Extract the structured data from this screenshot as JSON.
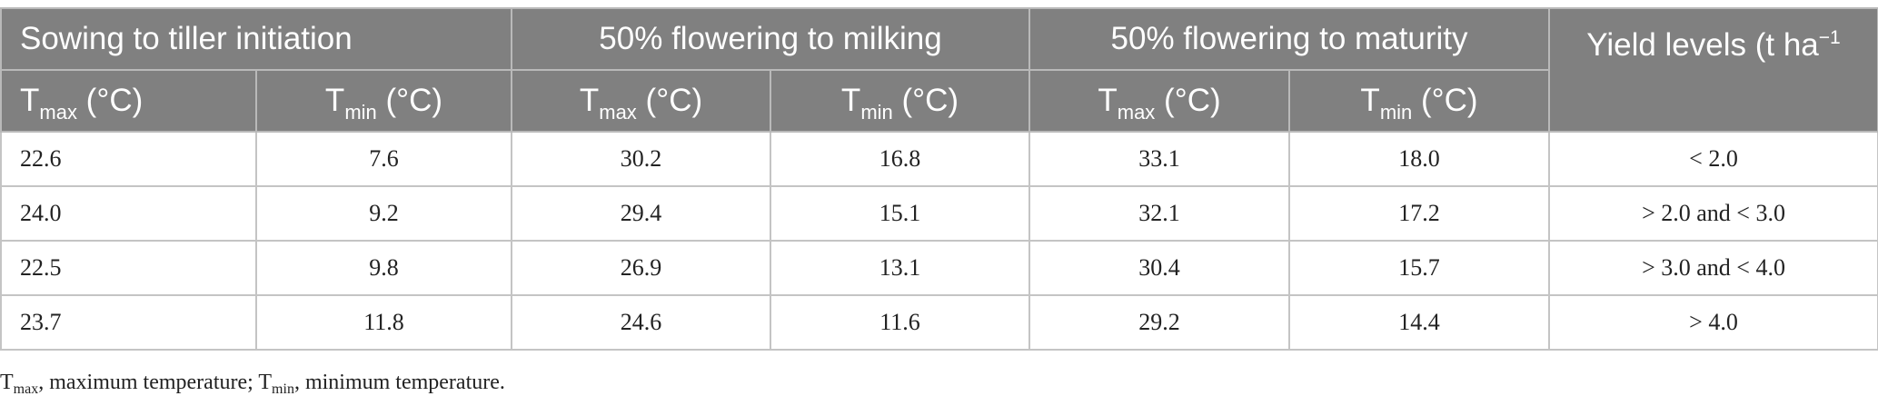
{
  "header": {
    "groups": [
      "Sowing to tiller initiation",
      "50% flowering to milking",
      "50% flowering to maturity"
    ],
    "yield_label": "Yield levels (t ha",
    "yield_unit_exp": "−1",
    "temp_symbol": "T",
    "max_sub": "max",
    "min_sub": "min",
    "unit": " (°C)"
  },
  "rows": [
    [
      "22.6",
      "7.6",
      "30.2",
      "16.8",
      "33.1",
      "18.0",
      "< 2.0"
    ],
    [
      "24.0",
      "9.2",
      "29.4",
      "15.1",
      "32.1",
      "17.2",
      "> 2.0 and < 3.0"
    ],
    [
      "22.5",
      "9.8",
      "26.9",
      "13.1",
      "30.4",
      "15.7",
      "> 3.0 and < 4.0"
    ],
    [
      "23.7",
      "11.8",
      "24.6",
      "11.6",
      "29.2",
      "14.4",
      "> 4.0"
    ]
  ],
  "footnote": {
    "t": "T",
    "max_sub": "max",
    "max_text": ", maximum temperature; ",
    "min_sub": "min",
    "min_text": ", minimum temperature."
  }
}
